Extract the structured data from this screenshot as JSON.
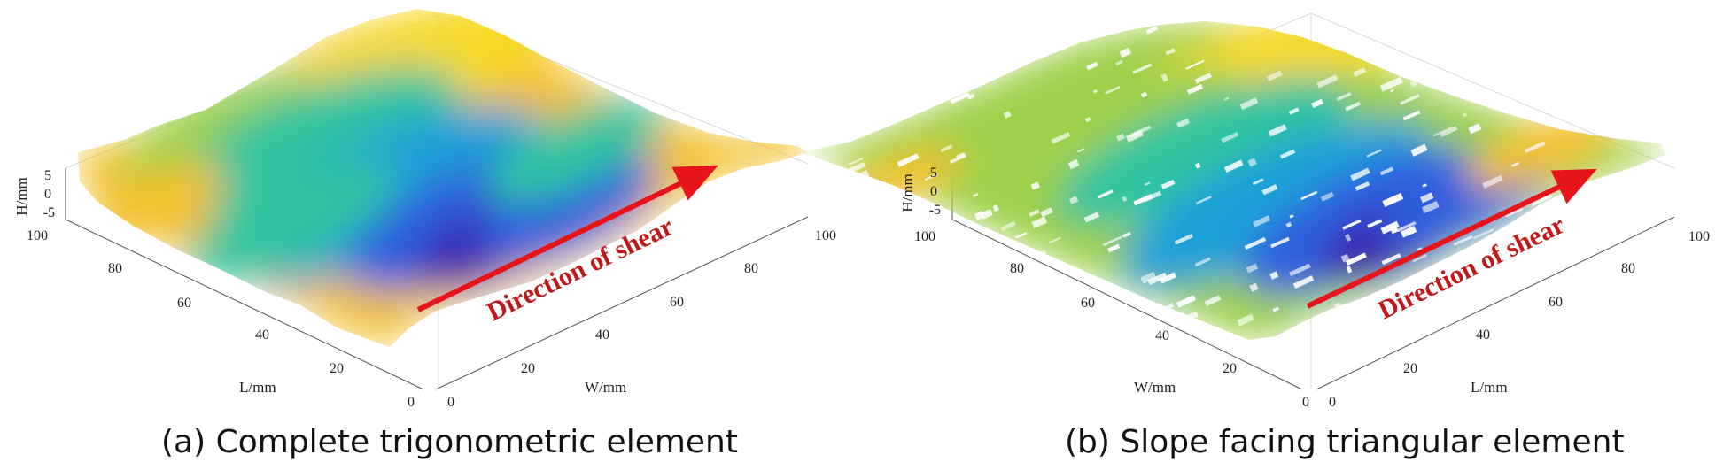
{
  "panels": [
    {
      "caption": "(a) Complete trigonometric element",
      "arrow_label": "Direction of shear",
      "render_style": "continuous surface",
      "h_axis": {
        "label": "H/mm",
        "ticks": [
          "5",
          "0",
          "-5"
        ]
      },
      "l_axis": {
        "label": "L/mm",
        "ticks": [
          "100",
          "80",
          "60",
          "40",
          "20",
          "0"
        ]
      },
      "w_axis": {
        "label": "W/mm",
        "ticks": [
          "0",
          "20",
          "40",
          "60",
          "80",
          "100"
        ]
      }
    },
    {
      "caption": "(b) Slope facing triangular element",
      "arrow_label": "Direction of shear",
      "render_style": "sparse triangle point cloud",
      "h_axis": {
        "label": "H/mm",
        "ticks": [
          "5",
          "0",
          "-5"
        ]
      },
      "l_axis": {
        "label": "W/mm",
        "ticks": [
          "100",
          "80",
          "60",
          "40",
          "20",
          "0"
        ]
      },
      "w_axis": {
        "label": "L/mm",
        "ticks": [
          "0",
          "20",
          "40",
          "60",
          "80",
          "100"
        ]
      }
    }
  ],
  "colors": {
    "arrow": "#e8141b",
    "arrow_text": "#c01818",
    "colormap": [
      "#3b1fb0",
      "#2f5ee0",
      "#1ea0d8",
      "#2ec4a0",
      "#9fd04a",
      "#f3c02c",
      "#f7d928"
    ]
  }
}
